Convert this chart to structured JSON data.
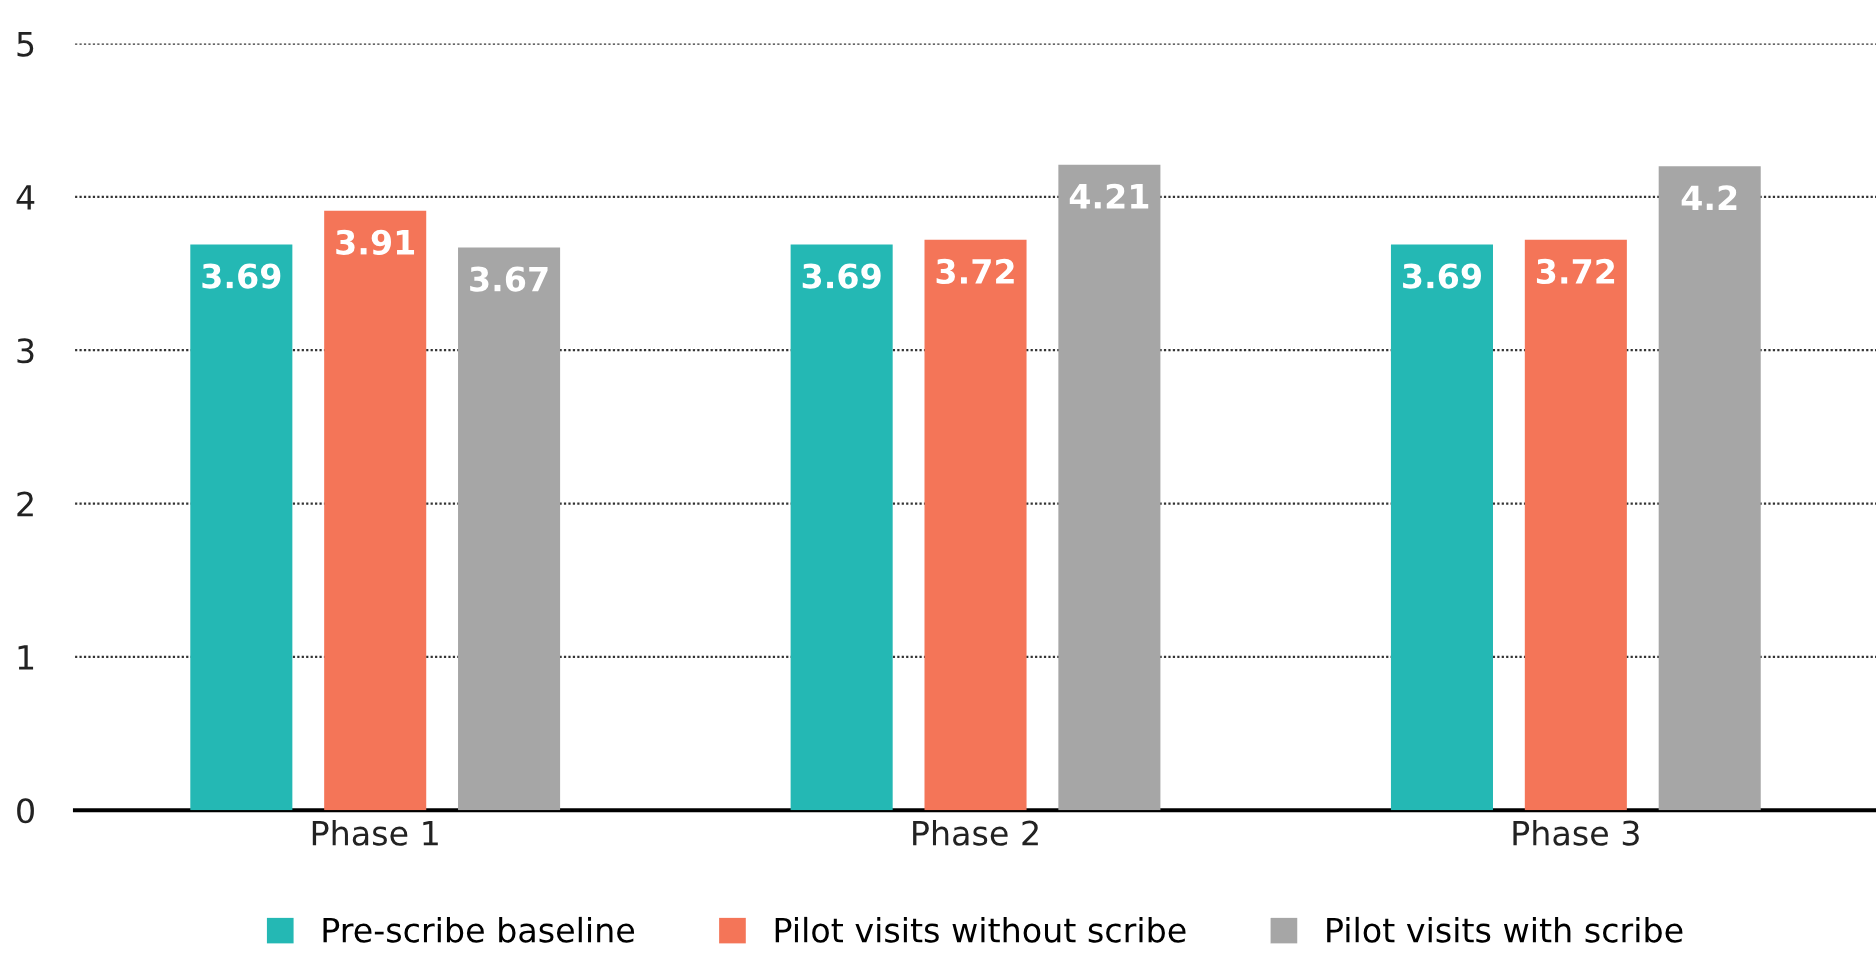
{
  "chart_data": {
    "type": "bar",
    "categories": [
      "Phase 1",
      "Phase 2",
      "Phase 3"
    ],
    "series": [
      {
        "name": "Pre-scribe baseline",
        "color": "#24b8b4",
        "values": [
          3.69,
          3.69,
          3.69
        ]
      },
      {
        "name": "Pilot visits without scribe",
        "color": "#f47558",
        "values": [
          3.91,
          3.72,
          3.72
        ]
      },
      {
        "name": "Pilot visits with scribe",
        "color": "#a6a6a6",
        "values": [
          3.67,
          4.21,
          4.2
        ]
      }
    ],
    "ylim": [
      0,
      5
    ],
    "yticks": [
      0,
      1,
      2,
      3,
      4,
      5
    ],
    "grid": "y",
    "legend": "bottom",
    "data_labels": true
  }
}
